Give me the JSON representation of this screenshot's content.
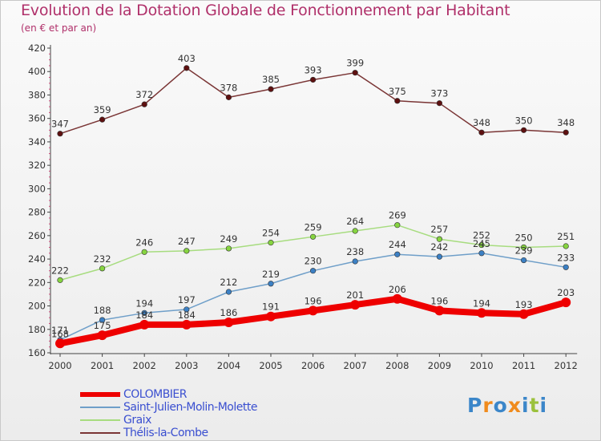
{
  "title": "Evolution de la Dotation Globale de Fonctionnement par Habitant",
  "subtitle": "(en € et par an)",
  "logo": {
    "text": "Proxiti",
    "colors": [
      "#3b86c9",
      "#f08b1d",
      "#3b86c9",
      "#f08b1d",
      "#3b86c9",
      "#9bc13c",
      "#3b86c9"
    ]
  },
  "chart_data": {
    "type": "line",
    "title": "Evolution de la Dotation Globale de Fonctionnement par Habitant",
    "subtitle": "(en € et par an)",
    "categories": [
      "2000",
      "2001",
      "2002",
      "2003",
      "2004",
      "2005",
      "2006",
      "2007",
      "2008",
      "2009",
      "2010",
      "2011",
      "2012"
    ],
    "ylim": [
      160,
      420
    ],
    "yticks": [
      160,
      180,
      200,
      220,
      240,
      260,
      280,
      300,
      320,
      340,
      360,
      380,
      400,
      420
    ],
    "grid": false,
    "legend_position": "bottom-left",
    "series": [
      {
        "name": "COLOMBIER",
        "color": "#ee0000",
        "marker": "#ee0000",
        "width": "thick",
        "values": [
          168,
          175,
          184,
          184,
          186,
          191,
          196,
          201,
          206,
          196,
          194,
          193,
          203
        ]
      },
      {
        "name": "Saint-Julien-Molin-Molette",
        "color": "#6f9fc9",
        "marker": "#3c80c4",
        "width": "thin",
        "values": [
          171,
          188,
          194,
          197,
          212,
          219,
          230,
          238,
          244,
          242,
          245,
          239,
          233
        ]
      },
      {
        "name": "Graix",
        "color": "#a7dc7f",
        "marker": "#86d440",
        "width": "thin",
        "values": [
          222,
          232,
          246,
          247,
          249,
          254,
          259,
          264,
          269,
          257,
          252,
          250,
          251
        ]
      },
      {
        "name": "Thélis-la-Combe",
        "color": "#7a3535",
        "marker": "#5e1010",
        "width": "thin",
        "values": [
          347,
          359,
          372,
          403,
          378,
          385,
          393,
          399,
          375,
          373,
          348,
          350,
          348
        ]
      }
    ]
  }
}
